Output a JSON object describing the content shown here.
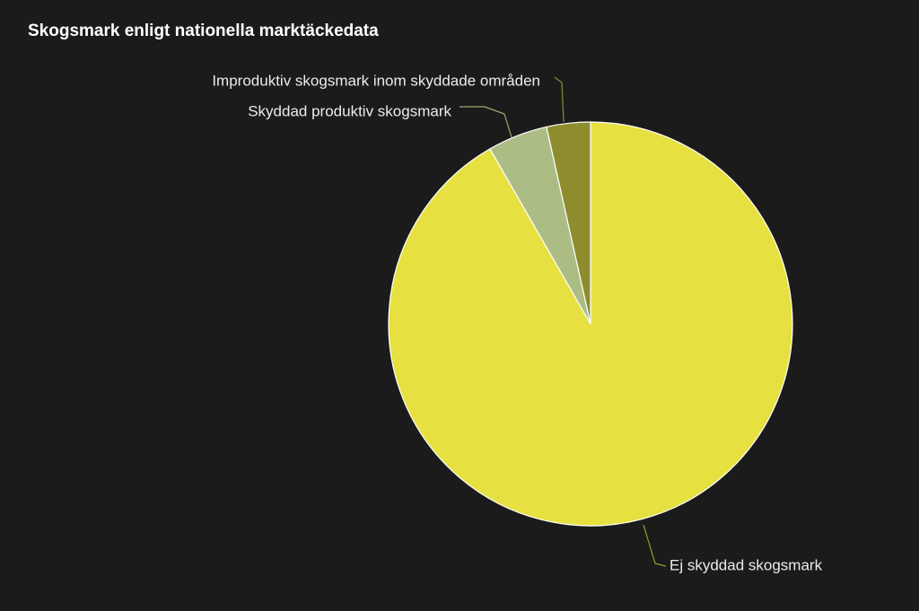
{
  "chart_data": {
    "type": "pie",
    "title": "Skogsmark enligt nationella marktäckedata",
    "slices": [
      {
        "label": "Ej skyddad skogsmark",
        "value": 91.7,
        "color": "#e6e040"
      },
      {
        "label": "Skyddad produktiv skogsmark",
        "value": 4.8,
        "color": "#abbd85"
      },
      {
        "label": "Improduktiv skogsmark inom skyddade områden",
        "value": 3.5,
        "color": "#8f8c2e"
      }
    ],
    "legend": "none"
  }
}
